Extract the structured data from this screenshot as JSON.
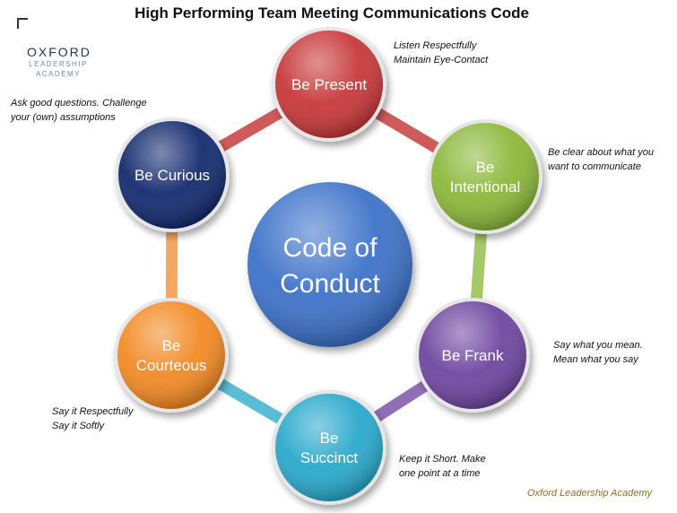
{
  "title": "High Performing Team Meeting Communications Code",
  "logo": {
    "line1": "OXFORD",
    "line2": "LEADERSHIP",
    "line3": "ACADEMY"
  },
  "center": {
    "line1": "Code of",
    "line2": "Conduct",
    "color": "#3d72c9"
  },
  "nodes": [
    {
      "label_lines": [
        "Be Present"
      ],
      "color": "#c8383a",
      "note_lines": [
        "Listen Respectfully",
        "Maintain Eye-Contact"
      ]
    },
    {
      "label_lines": [
        "Be",
        "Intentional"
      ],
      "color": "#8cb83a",
      "note_lines": [
        "Be clear about what you",
        "want to communicate"
      ]
    },
    {
      "label_lines": [
        "Be Frank"
      ],
      "color": "#6f46a0",
      "note_lines": [
        "Say what you mean.",
        "Mean what you say"
      ]
    },
    {
      "label_lines": [
        "Be",
        "Succinct"
      ],
      "color": "#2aa9cc",
      "note_lines": [
        "Keep it Short. Make",
        "one point at a time"
      ]
    },
    {
      "label_lines": [
        "Be",
        "Courteous"
      ],
      "color": "#f28a25",
      "note_lines": [
        "Say it Respectfully",
        "Say it Softly"
      ]
    },
    {
      "label_lines": [
        "Be Curious"
      ],
      "color": "#132a6e",
      "note_lines": [
        "Ask good questions. Challenge",
        "your  (own) assumptions"
      ]
    }
  ],
  "ring_colors": [
    "#cf5a5a",
    "#a6c866",
    "#8f6fb8",
    "#5bbcd6",
    "#f5a860",
    "#cf5a5a"
  ],
  "credit": "Oxford Leadership Academy"
}
